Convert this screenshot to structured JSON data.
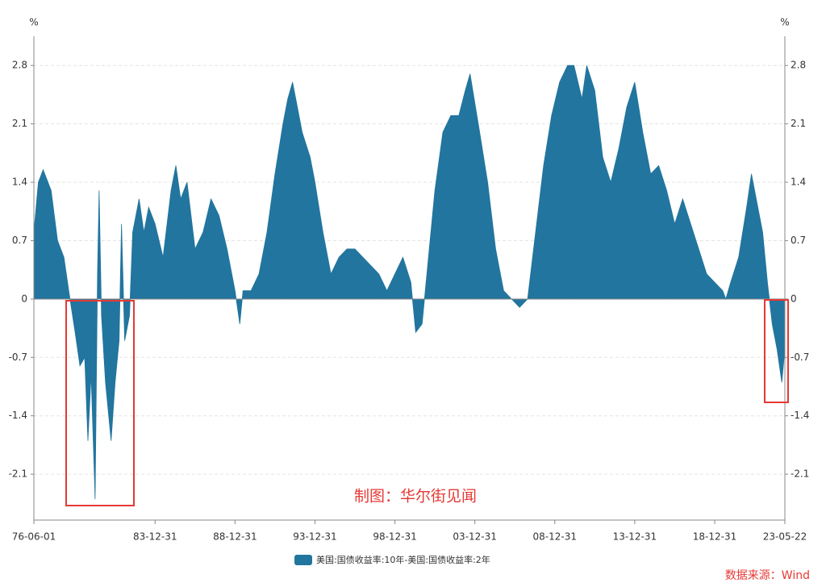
{
  "chart_data": {
    "type": "area",
    "y_unit_left": "%",
    "y_unit_right": "%",
    "annotation": "制图：华尔街见闻",
    "source": "数据来源：Wind",
    "xlim": [
      1976.42,
      2023.39
    ],
    "xticks": [
      {
        "value": 1976.42,
        "label": "76-06-01"
      },
      {
        "value": 1984.0,
        "label": "83-12-31"
      },
      {
        "value": 1989.0,
        "label": "88-12-31"
      },
      {
        "value": 1994.0,
        "label": "93-12-31"
      },
      {
        "value": 1999.0,
        "label": "98-12-31"
      },
      {
        "value": 2004.0,
        "label": "03-12-31"
      },
      {
        "value": 2009.0,
        "label": "08-12-31"
      },
      {
        "value": 2014.0,
        "label": "13-12-31"
      },
      {
        "value": 2019.0,
        "label": "18-12-31"
      },
      {
        "value": 2023.39,
        "label": "23-05-22"
      }
    ],
    "ylim": [
      -2.65,
      3.15
    ],
    "yticks": [
      -2.1,
      -1.4,
      -0.7,
      0,
      0.7,
      1.4,
      2.1,
      2.8
    ],
    "y2lim": [
      -2.65,
      3.15
    ],
    "y2ticks": [
      -2.1,
      -1.4,
      -0.7,
      0,
      0.7,
      1.4,
      2.1,
      2.8
    ],
    "grid": true,
    "legend": "bottom",
    "x": [
      1976.42,
      1976.7,
      1977.0,
      1977.5,
      1977.9,
      1978.3,
      1978.6,
      1979.0,
      1979.3,
      1979.6,
      1979.8,
      1980.0,
      1980.25,
      1980.4,
      1980.5,
      1980.65,
      1980.9,
      1981.25,
      1981.5,
      1981.75,
      1981.9,
      1982.1,
      1982.4,
      1982.6,
      1983.0,
      1983.3,
      1983.6,
      1984.0,
      1984.5,
      1985.0,
      1985.3,
      1985.6,
      1986.0,
      1986.5,
      1987.0,
      1987.5,
      1988.0,
      1988.5,
      1989.0,
      1989.3,
      1989.5,
      1990.0,
      1990.5,
      1991.0,
      1991.5,
      1992.0,
      1992.3,
      1992.6,
      1993.2,
      1993.7,
      1994.0,
      1994.5,
      1995.0,
      1995.5,
      1996.0,
      1996.5,
      1997.0,
      1997.5,
      1998.0,
      1998.5,
      1999.0,
      1999.5,
      2000.0,
      2000.3,
      2000.7,
      2001.0,
      2001.5,
      2002.0,
      2002.5,
      2003.0,
      2003.4,
      2003.7,
      2004.3,
      2004.8,
      2005.3,
      2005.8,
      2006.3,
      2006.8,
      2007.3,
      2007.8,
      2008.3,
      2008.8,
      2009.3,
      2009.8,
      2010.2,
      2010.7,
      2011.0,
      2011.5,
      2012.0,
      2012.5,
      2013.0,
      2013.5,
      2014.0,
      2014.5,
      2015.0,
      2015.5,
      2016.0,
      2016.5,
      2017.0,
      2017.5,
      2018.0,
      2018.5,
      2019.0,
      2019.5,
      2019.7,
      2020.0,
      2020.5,
      2021.0,
      2021.3,
      2021.6,
      2022.0,
      2022.3,
      2022.6,
      2022.9,
      2023.2,
      2023.39
    ],
    "series": [
      {
        "name": "美国:国债收益率:10年-美国:国债收益率:2年",
        "color": "#22759e",
        "values": [
          0.8,
          1.4,
          1.55,
          1.3,
          0.7,
          0.5,
          0.1,
          -0.4,
          -0.8,
          -0.7,
          -1.7,
          -0.9,
          -2.4,
          0.3,
          1.3,
          -0.2,
          -1.0,
          -1.7,
          -1.0,
          -0.5,
          0.9,
          -0.5,
          -0.2,
          0.8,
          1.2,
          0.8,
          1.1,
          0.9,
          0.5,
          1.3,
          1.6,
          1.2,
          1.4,
          0.6,
          0.8,
          1.2,
          1.0,
          0.6,
          0.1,
          -0.3,
          0.1,
          0.1,
          0.3,
          0.8,
          1.5,
          2.1,
          2.4,
          2.6,
          2.0,
          1.7,
          1.4,
          0.8,
          0.3,
          0.5,
          0.6,
          0.6,
          0.5,
          0.4,
          0.3,
          0.1,
          0.3,
          0.5,
          0.2,
          -0.4,
          -0.3,
          0.3,
          1.3,
          2.0,
          2.2,
          2.2,
          2.5,
          2.7,
          2.0,
          1.4,
          0.6,
          0.1,
          0.0,
          -0.1,
          0.0,
          0.8,
          1.6,
          2.2,
          2.6,
          2.8,
          2.8,
          2.4,
          2.8,
          2.5,
          1.7,
          1.4,
          1.8,
          2.3,
          2.6,
          2.0,
          1.5,
          1.6,
          1.3,
          0.9,
          1.2,
          0.9,
          0.6,
          0.3,
          0.2,
          0.1,
          0.0,
          0.2,
          0.5,
          1.1,
          1.5,
          1.2,
          0.8,
          0.2,
          -0.3,
          -0.6,
          -1.0,
          -0.6
        ]
      }
    ]
  }
}
